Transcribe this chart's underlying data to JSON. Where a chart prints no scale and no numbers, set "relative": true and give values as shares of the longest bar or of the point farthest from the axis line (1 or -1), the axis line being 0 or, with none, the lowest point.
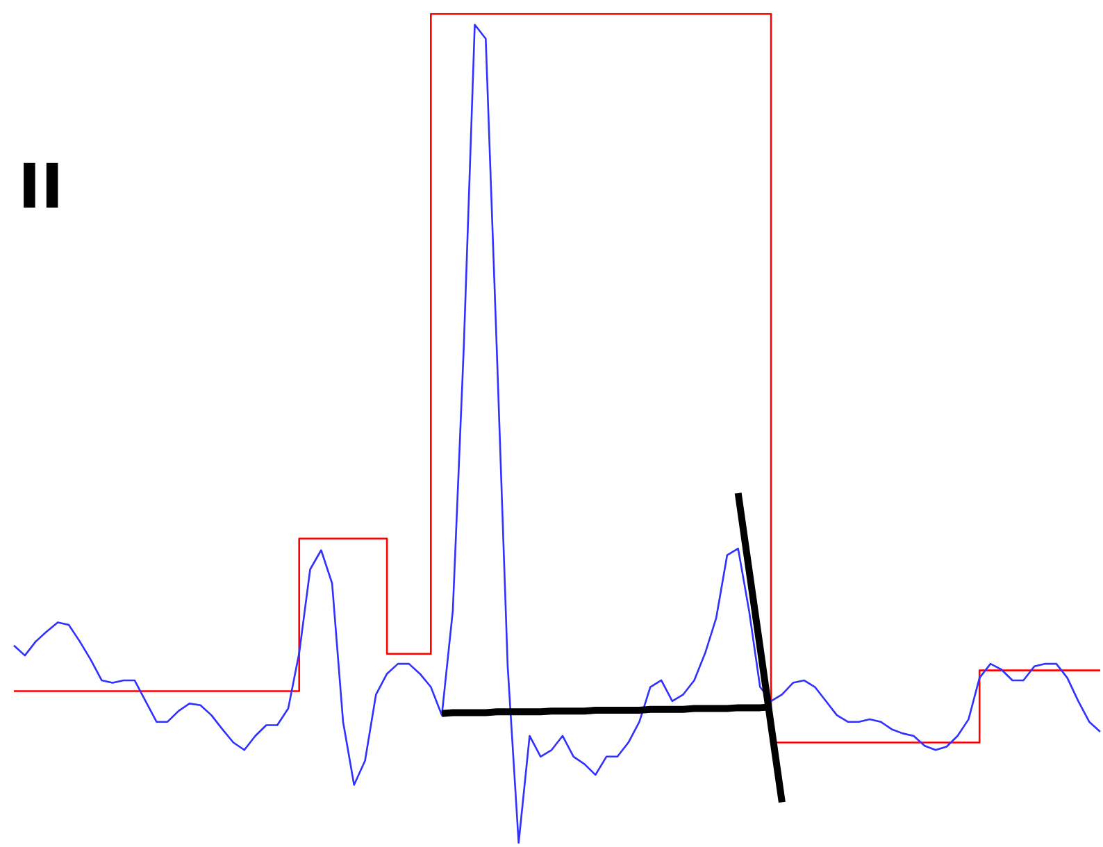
{
  "chart_data": {
    "type": "line",
    "title": "II",
    "relative": true,
    "marker": "none",
    "categories": [
      null,
      null,
      null,
      null,
      null,
      null,
      null,
      null,
      null,
      null,
      null,
      null,
      null,
      null,
      null,
      null,
      null,
      null,
      null,
      null,
      null,
      null,
      null,
      null,
      null,
      null,
      null,
      null,
      null,
      null,
      null,
      null,
      null,
      null,
      null,
      null,
      null,
      null,
      null,
      null,
      null,
      null,
      null,
      null,
      null,
      null,
      null,
      null,
      null,
      null,
      null,
      null,
      null,
      null,
      null,
      null,
      null,
      null,
      null,
      null,
      null,
      null,
      null,
      null,
      null,
      null,
      null,
      null,
      null,
      null,
      null,
      null,
      null,
      null,
      null,
      null,
      null,
      null,
      null,
      null,
      null,
      null,
      null,
      null,
      null,
      null,
      null,
      null,
      null,
      null,
      null,
      null,
      null,
      null,
      null,
      null,
      null,
      null,
      null,
      null
    ],
    "series": [
      {
        "type": "step",
        "color": "#ff0000",
        "values": [
          0.183,
          0.183,
          0.183,
          0.183,
          0.183,
          0.183,
          0.183,
          0.183,
          0.183,
          0.183,
          0.183,
          0.183,
          0.183,
          0.183,
          0.183,
          0.183,
          0.183,
          0.183,
          0.183,
          0.183,
          0.183,
          0.183,
          0.183,
          0.183,
          0.183,
          0.183,
          0.367,
          0.367,
          0.367,
          0.367,
          0.367,
          0.367,
          0.367,
          0.367,
          0.228,
          0.228,
          0.228,
          0.228,
          1,
          1,
          1,
          1,
          1,
          1,
          1,
          1,
          1,
          1,
          1,
          1,
          1,
          1,
          1,
          1,
          1,
          1,
          1,
          1,
          1,
          1,
          1,
          1,
          1,
          1,
          1,
          1,
          1,
          1,
          1,
          0.121,
          0.121,
          0.121,
          0.121,
          0.121,
          0.121,
          0.121,
          0.121,
          0.121,
          0.121,
          0.121,
          0.121,
          0.121,
          0.121,
          0.121,
          0.121,
          0.121,
          0.121,
          0.121,
          0.208,
          0.208,
          0.208,
          0.208,
          0.208,
          0.208,
          0.208,
          0.208,
          0.208,
          0.208,
          0.208,
          0.208
        ]
      },
      {
        "color": "#3030ff",
        "values": [
          0.238,
          0.226,
          0.243,
          0.255,
          0.266,
          0.263,
          0.243,
          0.221,
          0.196,
          0.193,
          0.196,
          0.196,
          0.171,
          0.146,
          0.146,
          0.159,
          0.168,
          0.166,
          0.154,
          0.137,
          0.121,
          0.112,
          0.129,
          0.142,
          0.142,
          0.162,
          0.229,
          0.33,
          0.353,
          0.313,
          0.146,
          0.07,
          0.099,
          0.179,
          0.204,
          0.216,
          0.216,
          0.204,
          0.188,
          0.154,
          0.28,
          0.598,
          0.987,
          0.97,
          0.598,
          0.213,
          0,
          0.129,
          0.104,
          0.112,
          0.129,
          0.104,
          0.095,
          0.082,
          0.104,
          0.104,
          0.121,
          0.146,
          0.188,
          0.196,
          0.171,
          0.179,
          0.196,
          0.229,
          0.271,
          0.347,
          0.355,
          0.28,
          0.188,
          0.171,
          0.179,
          0.193,
          0.196,
          0.188,
          0.171,
          0.154,
          0.146,
          0.146,
          0.149,
          0.146,
          0.137,
          0.132,
          0.129,
          0.117,
          0.112,
          0.116,
          0.129,
          0.149,
          0.199,
          0.216,
          0.209,
          0.196,
          0.196,
          0.213,
          0.216,
          0.216,
          0.199,
          0.171,
          0.146,
          0.134
        ]
      },
      {
        "color": "#000000",
        "values": [
          null,
          null,
          null,
          null,
          null,
          null,
          null,
          null,
          null,
          null,
          null,
          null,
          null,
          null,
          null,
          null,
          null,
          null,
          null,
          null,
          null,
          null,
          null,
          null,
          null,
          null,
          null,
          null,
          null,
          null,
          null,
          null,
          null,
          null,
          null,
          null,
          null,
          null,
          null,
          0.156,
          0.157,
          0.157,
          0.157,
          0.157,
          0.158,
          0.158,
          0.158,
          0.158,
          0.158,
          0.159,
          0.159,
          0.159,
          0.159,
          0.16,
          0.16,
          0.16,
          0.16,
          0.16,
          0.161,
          0.161,
          0.161,
          0.161,
          0.162,
          0.162,
          0.162,
          0.162,
          0.163,
          0.163,
          0.163,
          0.164,
          null,
          null,
          null,
          null,
          null,
          null,
          null,
          null,
          null,
          null,
          null,
          null,
          null,
          null,
          null,
          null,
          null,
          null,
          null,
          null,
          null,
          null,
          null,
          null,
          null,
          null,
          null,
          null,
          null,
          null
        ]
      },
      {
        "color": "#000000",
        "values": [
          null,
          null,
          null,
          null,
          null,
          null,
          null,
          null,
          null,
          null,
          null,
          null,
          null,
          null,
          null,
          null,
          null,
          null,
          null,
          null,
          null,
          null,
          null,
          null,
          null,
          null,
          null,
          null,
          null,
          null,
          null,
          null,
          null,
          null,
          null,
          null,
          null,
          null,
          null,
          null,
          null,
          null,
          null,
          null,
          null,
          null,
          null,
          null,
          null,
          null,
          null,
          null,
          null,
          null,
          null,
          null,
          null,
          null,
          null,
          null,
          null,
          null,
          null,
          null,
          null,
          null,
          0.422,
          0.329,
          0.236,
          0.142,
          0.049,
          null,
          null,
          null,
          null,
          null,
          null,
          null,
          null,
          null,
          null,
          null,
          null,
          null,
          null,
          null,
          null,
          null,
          null,
          null,
          null,
          null,
          null,
          null,
          null,
          null,
          null,
          null,
          null,
          null
        ]
      }
    ]
  }
}
